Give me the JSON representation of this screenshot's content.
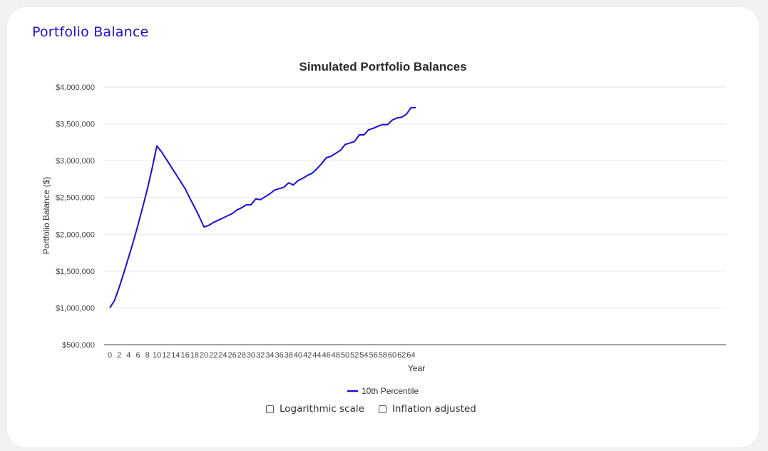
{
  "card": {
    "title": "Portfolio Balance"
  },
  "options": {
    "log_label": "Logarithmic scale",
    "log_checked": false,
    "inflation_label": "Inflation adjusted",
    "inflation_checked": false
  },
  "chart_data": {
    "type": "line",
    "title": "Simulated Portfolio Balances",
    "xlabel": "Year",
    "ylabel": "Portfolio Balance ($)",
    "xlim": [
      0,
      65
    ],
    "ylim": [
      500000,
      4000000
    ],
    "y_ticks": [
      500000,
      1000000,
      1500000,
      2000000,
      2500000,
      3000000,
      3500000,
      4000000
    ],
    "y_tick_labels": [
      "$500,000",
      "$1,000,000",
      "$1,500,000",
      "$2,000,000",
      "$2,500,000",
      "$3,000,000",
      "$3,500,000",
      "$4,000,000"
    ],
    "x_ticks": [
      0,
      2,
      4,
      6,
      8,
      10,
      12,
      14,
      16,
      18,
      20,
      22,
      24,
      26,
      28,
      30,
      32,
      34,
      36,
      38,
      40,
      42,
      44,
      46,
      48,
      50,
      52,
      54,
      56,
      58,
      60,
      62,
      64
    ],
    "x_tick_labels": [
      "0",
      "2",
      "4",
      "6",
      "8",
      "10",
      "12",
      "14",
      "16",
      "18",
      "20",
      "22",
      "24",
      "26",
      "28",
      "30",
      "32",
      "34",
      "36",
      "38",
      "40",
      "42",
      "44",
      "46",
      "48",
      "50",
      "52",
      "54",
      "56",
      "58",
      "60",
      "62",
      "64"
    ],
    "grid": true,
    "legend_position": "bottom",
    "color": "#1a0fd6",
    "series": [
      {
        "name": "10th Percentile",
        "x": [
          0,
          1,
          2,
          3,
          4,
          5,
          6,
          7,
          8,
          9,
          10,
          11,
          12,
          13,
          14,
          15,
          16,
          17,
          18,
          19,
          20,
          21,
          22,
          23,
          24,
          25,
          26,
          27,
          28,
          29,
          30,
          31,
          32,
          33,
          34,
          35,
          36,
          37,
          38,
          39,
          40,
          41,
          42,
          43,
          44,
          45,
          46,
          47,
          48,
          49,
          50,
          51,
          52,
          53,
          54,
          55,
          56,
          57,
          58,
          59,
          60,
          61,
          62,
          63,
          64,
          65
        ],
        "y": [
          1000000,
          1100000,
          1280000,
          1480000,
          1690000,
          1900000,
          2130000,
          2370000,
          2620000,
          2900000,
          3200000,
          3120000,
          3020000,
          2920000,
          2820000,
          2720000,
          2620000,
          2490000,
          2370000,
          2240000,
          2100000,
          2120000,
          2160000,
          2190000,
          2220000,
          2250000,
          2280000,
          2330000,
          2360000,
          2400000,
          2400000,
          2480000,
          2470000,
          2510000,
          2550000,
          2600000,
          2620000,
          2640000,
          2700000,
          2670000,
          2730000,
          2760000,
          2800000,
          2830000,
          2890000,
          2960000,
          3040000,
          3060000,
          3100000,
          3140000,
          3220000,
          3240000,
          3260000,
          3350000,
          3350000,
          3420000,
          3440000,
          3470000,
          3490000,
          3490000,
          3550000,
          3580000,
          3590000,
          3630000,
          3720000,
          3720000
        ]
      }
    ]
  }
}
